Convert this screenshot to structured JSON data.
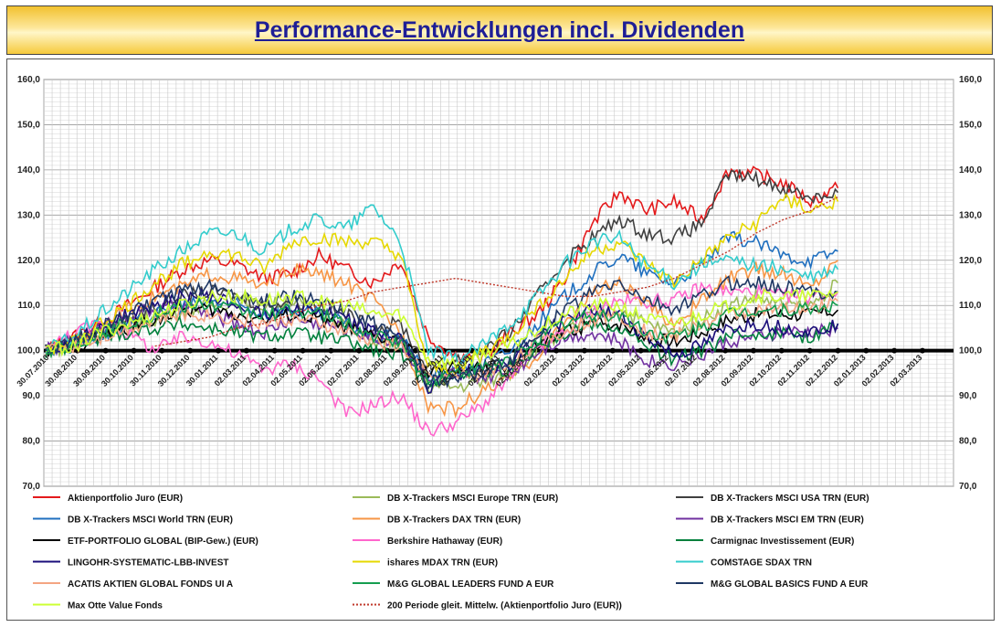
{
  "header": {
    "title": "Performance-Entwicklungen incl. Dividenden"
  },
  "chart_data": {
    "type": "line",
    "title": "Performance-Entwicklungen incl. Dividenden",
    "ylim": [
      70,
      160
    ],
    "grid": true,
    "y_ticks_left": [
      "160,0",
      "150,0",
      "140,0",
      "130,0",
      "120,0",
      "110,0",
      "100,0",
      "90,0",
      "80,0",
      "70,0"
    ],
    "y_ticks_right": [
      "160,0",
      "150,0",
      "140,0",
      "130,0",
      "120,0",
      "110,0",
      "100,0",
      "90,0",
      "80,0",
      "70,0"
    ],
    "x_tick_labels": [
      "30.07.2010",
      "30.08.2010",
      "30.09.2010",
      "30.10.2010",
      "30.11.2010",
      "30.12.2010",
      "30.01.2011",
      "02.03.2011",
      "02.04.2011",
      "02.05.2011",
      "02.06.2011",
      "02.07.2011",
      "02.08.2011",
      "02.09.2011",
      "02.10.2011",
      "02.11.2011",
      "02.12.2011",
      "02.01.2012",
      "02.02.2012",
      "02.03.2012",
      "02.04.2012",
      "02.05.2012",
      "02.06.2012",
      "02.07.2012",
      "02.08.2012",
      "02.09.2012",
      "02.10.2012",
      "02.11.2012",
      "02.12.2012",
      "02.01.2013",
      "02.02.2013",
      "02.03.2013"
    ],
    "baseline": 100,
    "legend_position": "bottom",
    "series": [
      {
        "name": "Aktienportfolio Juro (EUR)",
        "color": "#e41a1c",
        "style": "solid",
        "values": [
          100,
          103,
          106,
          110,
          114,
          118,
          120,
          119,
          116,
          117,
          121,
          118,
          115,
          120,
          103,
          99,
          98,
          104,
          108,
          116,
          128,
          135,
          131,
          133,
          129,
          140,
          139,
          137,
          133,
          136
        ]
      },
      {
        "name": "DB X-Trackers MSCI Europe TRN (EUR)",
        "color": "#9bbb59",
        "style": "solid",
        "values": [
          100,
          101,
          104,
          106,
          107,
          109,
          110,
          111,
          110,
          111,
          109,
          106,
          102,
          102,
          92,
          92,
          93,
          95,
          100,
          104,
          108,
          109,
          106,
          104,
          107,
          110,
          112,
          110,
          110,
          115
        ]
      },
      {
        "name": "DB X-Trackers MSCI USA TRN (EUR)",
        "color": "#404040",
        "style": "solid",
        "values": [
          100,
          102,
          104,
          106,
          110,
          112,
          113,
          112,
          110,
          111,
          110,
          108,
          105,
          106,
          96,
          98,
          100,
          104,
          112,
          120,
          125,
          129,
          126,
          125,
          128,
          139,
          138,
          136,
          134,
          135
        ]
      },
      {
        "name": "DB X-Trackers MSCI World TRN (EUR)",
        "color": "#1f6fbf",
        "style": "solid",
        "values": [
          100,
          101,
          103,
          105,
          108,
          110,
          111,
          110,
          108,
          109,
          108,
          106,
          103,
          103,
          94,
          96,
          97,
          100,
          106,
          112,
          117,
          121,
          117,
          115,
          119,
          125,
          124,
          121,
          120,
          122
        ]
      },
      {
        "name": "DB X-Trackers DAX TRN (EUR)",
        "color": "#f79646",
        "style": "solid",
        "values": [
          100,
          102,
          105,
          109,
          112,
          114,
          117,
          116,
          114,
          118,
          117,
          115,
          111,
          104,
          88,
          87,
          91,
          94,
          99,
          106,
          113,
          115,
          110,
          106,
          111,
          116,
          118,
          117,
          114,
          120
        ]
      },
      {
        "name": "DB X-Trackers  MSCI EM TRN (EUR)",
        "color": "#7030a0",
        "style": "solid",
        "values": [
          100,
          102,
          105,
          108,
          109,
          110,
          108,
          106,
          104,
          107,
          106,
          105,
          103,
          102,
          93,
          95,
          94,
          95,
          100,
          103,
          104,
          102,
          98,
          97,
          99,
          102,
          103,
          104,
          104,
          105
        ]
      },
      {
        "name": "ETF-PORTFOLIO GLOBAL (BIP-Gew.) (EUR)",
        "color": "#000000",
        "style": "solid",
        "values": [
          100,
          101,
          103,
          105,
          107,
          109,
          109,
          108,
          107,
          108,
          107,
          105,
          103,
          102,
          95,
          96,
          96,
          97,
          101,
          104,
          106,
          106,
          103,
          102,
          104,
          107,
          108,
          108,
          108,
          109
        ]
      },
      {
        "name": "Berkshire Hathaway (EUR)",
        "color": "#ff66cc",
        "style": "solid",
        "values": [
          100,
          104,
          106,
          104,
          100,
          103,
          102,
          99,
          96,
          97,
          94,
          86,
          88,
          90,
          82,
          84,
          88,
          94,
          101,
          104,
          109,
          111,
          111,
          111,
          114,
          113,
          113,
          112,
          112,
          113
        ]
      },
      {
        "name": "Carmignac Investissement (EUR)",
        "color": "#00803c",
        "style": "solid",
        "values": [
          100,
          101,
          103,
          104,
          105,
          106,
          105,
          104,
          103,
          104,
          103,
          102,
          100,
          99,
          93,
          95,
          95,
          96,
          101,
          104,
          106,
          105,
          101,
          98,
          100,
          103,
          104,
          104,
          103,
          106
        ]
      },
      {
        "name": "LINGOHR-SYSTEMATIC-LBB-INVEST",
        "color": "#1a0d7a",
        "style": "solid",
        "values": [
          100,
          102,
          105,
          108,
          110,
          112,
          112,
          110,
          108,
          110,
          109,
          107,
          104,
          103,
          92,
          95,
          96,
          97,
          103,
          107,
          109,
          108,
          103,
          99,
          101,
          105,
          106,
          105,
          104,
          106
        ]
      },
      {
        "name": "ishares MDAX TRN (EUR)",
        "color": "#e6d800",
        "style": "solid",
        "values": [
          100,
          102,
          106,
          110,
          115,
          119,
          122,
          121,
          118,
          124,
          125,
          124,
          124,
          121,
          96,
          96,
          100,
          103,
          110,
          116,
          122,
          124,
          119,
          115,
          120,
          125,
          128,
          134,
          131,
          133
        ]
      },
      {
        "name": "COMSTAGE SDAX TRN",
        "color": "#33cccc",
        "style": "solid",
        "values": [
          100,
          103,
          108,
          113,
          118,
          122,
          126,
          126,
          122,
          127,
          129,
          127,
          132,
          124,
          100,
          98,
          101,
          106,
          112,
          119,
          124,
          125,
          119,
          115,
          119,
          120,
          119,
          118,
          116,
          118
        ]
      },
      {
        "name": "ACATIS AKTIEN GLOBAL FONDS UI A",
        "color": "#f4a582",
        "style": "solid",
        "values": [
          100,
          101,
          103,
          105,
          107,
          108,
          108,
          107,
          106,
          107,
          106,
          104,
          102,
          101,
          94,
          94,
          95,
          97,
          102,
          104,
          107,
          108,
          104,
          103,
          106,
          108,
          109,
          109,
          109,
          111
        ]
      },
      {
        "name": "M&G GLOBAL LEADERS FUND A EUR",
        "color": "#159d4f",
        "style": "solid",
        "values": [
          100,
          101,
          104,
          106,
          108,
          110,
          110,
          109,
          108,
          109,
          108,
          106,
          103,
          102,
          93,
          95,
          96,
          98,
          103,
          106,
          108,
          108,
          104,
          103,
          105,
          108,
          109,
          109,
          109,
          110
        ]
      },
      {
        "name": "M&G GLOBAL BASICS FUND A EUR",
        "color": "#1f3864",
        "style": "solid",
        "values": [
          100,
          102,
          105,
          108,
          111,
          113,
          114,
          113,
          111,
          112,
          111,
          109,
          106,
          104,
          93,
          94,
          95,
          98,
          104,
          109,
          113,
          115,
          111,
          109,
          112,
          115,
          115,
          114,
          113,
          113
        ]
      },
      {
        "name": "Max Otte Value Fonds",
        "color": "#ccff33",
        "style": "solid",
        "values": [
          100,
          101,
          104,
          106,
          108,
          110,
          112,
          112,
          111,
          112,
          111,
          110,
          108,
          108,
          98,
          97,
          99,
          101,
          105,
          108,
          110,
          110,
          107,
          106,
          108,
          110,
          112,
          112,
          112,
          113
        ]
      },
      {
        "name": "200 Periode gleit. Mittelw. (Aktienportfolio  Juro (EUR))",
        "color": "#c0392b",
        "style": "dotted",
        "values": [
          null,
          null,
          null,
          null,
          101,
          102,
          103,
          105,
          106,
          108,
          110,
          111,
          113,
          114,
          115,
          116,
          115,
          114,
          113,
          112,
          112,
          113,
          114,
          116,
          119,
          122,
          126,
          129,
          131,
          134
        ]
      }
    ]
  },
  "legend_rows": [
    [
      "Aktienportfolio Juro (EUR)",
      "DB X-Trackers MSCI Europe TRN (EUR)",
      "DB X-Trackers MSCI USA TRN (EUR)"
    ],
    [
      "DB X-Trackers MSCI World TRN (EUR)",
      "DB X-Trackers DAX TRN (EUR)",
      "DB X-Trackers  MSCI EM TRN (EUR)"
    ],
    [
      "ETF-PORTFOLIO GLOBAL (BIP-Gew.) (EUR)",
      "Berkshire Hathaway (EUR)",
      "Carmignac Investissement (EUR)"
    ],
    [
      "LINGOHR-SYSTEMATIC-LBB-INVEST",
      "ishares MDAX TRN (EUR)",
      "COMSTAGE SDAX TRN"
    ],
    [
      "ACATIS AKTIEN GLOBAL FONDS UI A",
      "M&G GLOBAL LEADERS FUND A EUR",
      "M&G GLOBAL BASICS FUND A EUR"
    ],
    [
      "Max Otte Value Fonds",
      "200 Periode gleit. Mittelw. (Aktienportfolio  Juro (EUR))",
      ""
    ]
  ]
}
